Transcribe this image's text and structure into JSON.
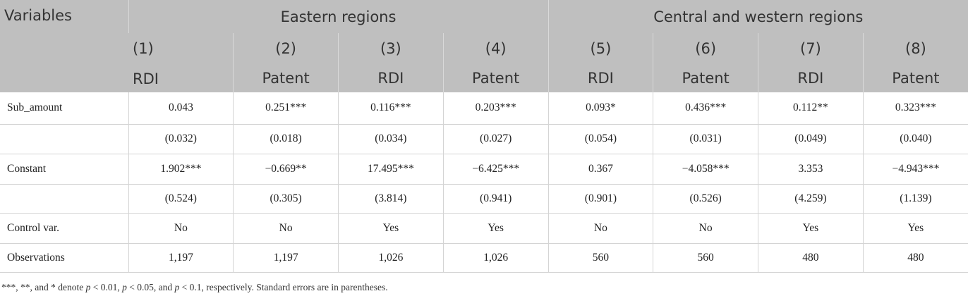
{
  "header": {
    "groups": [
      "Variables",
      "Eastern regions",
      "Central and western regions"
    ],
    "numbers": [
      "(1)",
      "(2)",
      "(3)",
      "(4)",
      "(5)",
      "(6)",
      "(7)",
      "(8)"
    ],
    "depvars": [
      "RDI",
      "Patent",
      "RDI",
      "Patent",
      "RDI",
      "Patent",
      "RDI",
      "Patent"
    ]
  },
  "table": {
    "rows": [
      {
        "label": "Sub_amount",
        "cells": [
          "0.043",
          "0.251***",
          "0.116***",
          "0.203***",
          "0.093*",
          "0.436***",
          "0.112**",
          "0.323***"
        ]
      },
      {
        "cells": [
          "(0.032)",
          "(0.018)",
          "(0.034)",
          "(0.027)",
          "(0.054)",
          "(0.031)",
          "(0.049)",
          "(0.040)"
        ]
      },
      {
        "label": "Constant",
        "cells": [
          "1.902***",
          "−0.669**",
          "17.495***",
          "−6.425***",
          "0.367",
          "−4.058***",
          "3.353",
          "−4.943***"
        ]
      },
      {
        "cells": [
          "(0.524)",
          "(0.305)",
          "(3.814)",
          "(0.941)",
          "(0.901)",
          "(0.526)",
          "(4.259)",
          "(1.139)"
        ]
      },
      {
        "label": "Control var.",
        "cells": [
          "No",
          "No",
          "Yes",
          "Yes",
          "No",
          "No",
          "Yes",
          "Yes"
        ]
      },
      {
        "label": "Observations",
        "cells": [
          "1,197",
          "1,197",
          "1,026",
          "1,026",
          "560",
          "560",
          "480",
          "480"
        ]
      }
    ]
  },
  "footnote": [
    {
      "text": "***, **, and * denote "
    },
    {
      "text": "p",
      "italic": true
    },
    {
      "text": " < 0.01, "
    },
    {
      "text": "p",
      "italic": true
    },
    {
      "text": " < 0.05, and "
    },
    {
      "text": "p",
      "italic": true
    },
    {
      "text": " < 0.1, respectively. Standard errors are in parentheses."
    }
  ]
}
